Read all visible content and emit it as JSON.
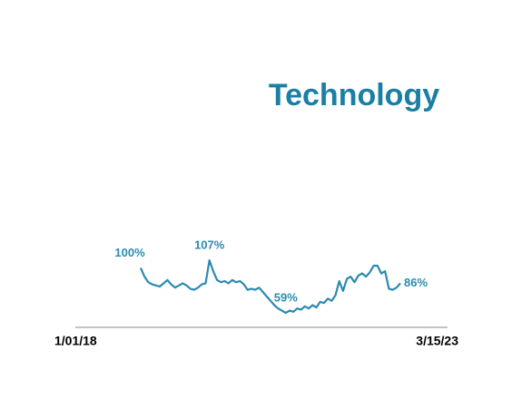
{
  "chart_data": {
    "type": "line",
    "title": "Technology",
    "x": [
      "1/01/18",
      null,
      null,
      null,
      null,
      null,
      null,
      null,
      null,
      null,
      null,
      null,
      null,
      null,
      null,
      null,
      null,
      null,
      null,
      null,
      null,
      null,
      null,
      null,
      null,
      null,
      null,
      null,
      null,
      null,
      null,
      null,
      null,
      null,
      null,
      null,
      null,
      null,
      null,
      null,
      null,
      null,
      null,
      null,
      null,
      null,
      null,
      null,
      null,
      null,
      null,
      null,
      null,
      null,
      null,
      null,
      null,
      null,
      null,
      null,
      null,
      null,
      null,
      null,
      null,
      null,
      null,
      null,
      "3/15/23"
    ],
    "series": [
      {
        "color": "#2a8bb0",
        "values": [
          100,
          92,
          87,
          85,
          84,
          83,
          86,
          89,
          85,
          82,
          84,
          86,
          84,
          81,
          80,
          82,
          85,
          86,
          107,
          97,
          89,
          87,
          88,
          86,
          89,
          87,
          88,
          85,
          80,
          81,
          80,
          82,
          78,
          74,
          70,
          66,
          63,
          61,
          59,
          61,
          60,
          63,
          62,
          65,
          63,
          66,
          64,
          69,
          68,
          72,
          70,
          75,
          88,
          79,
          90,
          92,
          87,
          93,
          95,
          92,
          96,
          102,
          102,
          95,
          97,
          81,
          80,
          82,
          86
        ],
        "value_labels": [
          "100%",
          null,
          null,
          null,
          null,
          null,
          null,
          null,
          null,
          null,
          null,
          null,
          null,
          null,
          null,
          null,
          null,
          null,
          "107%",
          null,
          null,
          null,
          null,
          null,
          null,
          null,
          null,
          null,
          null,
          null,
          null,
          null,
          null,
          null,
          null,
          null,
          null,
          null,
          "59%",
          null,
          null,
          null,
          null,
          null,
          null,
          null,
          null,
          null,
          null,
          null,
          null,
          null,
          null,
          null,
          null,
          null,
          null,
          null,
          null,
          null,
          null,
          null,
          null,
          null,
          null,
          null,
          null,
          null,
          "86%"
        ]
      }
    ]
  }
}
